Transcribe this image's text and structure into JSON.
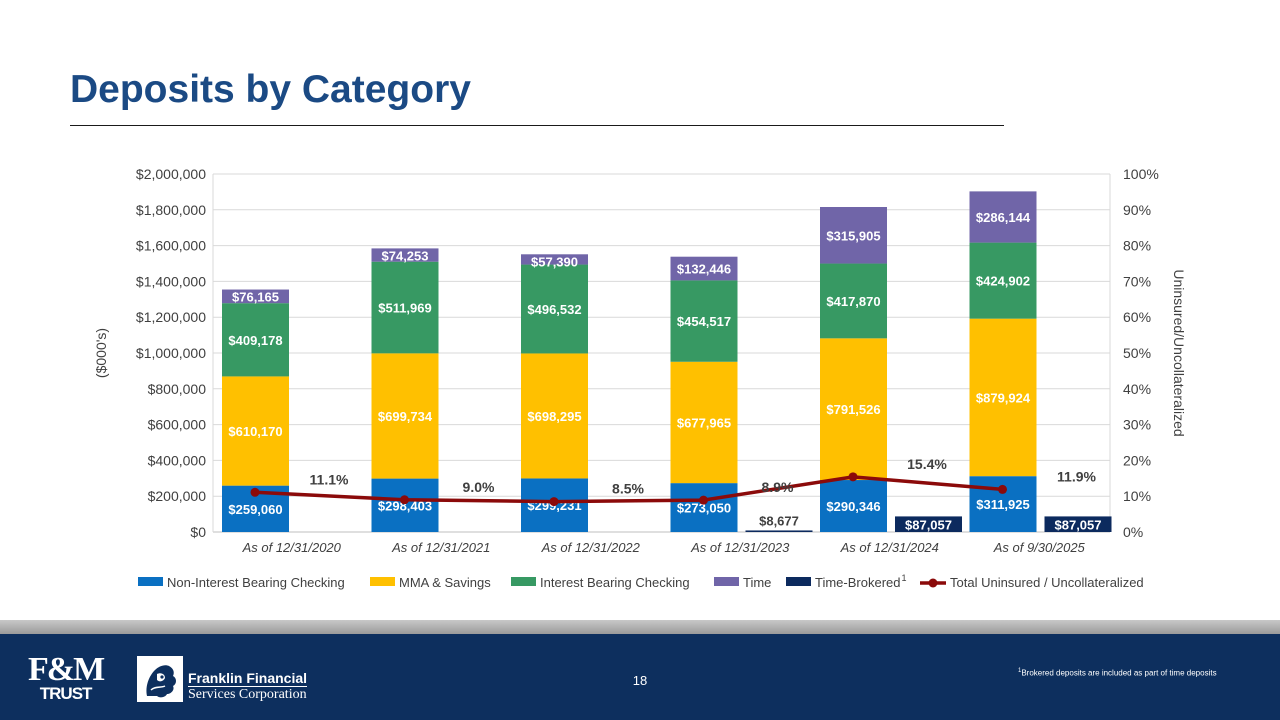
{
  "slide": {
    "title": "Deposits by Category",
    "page_number": "18",
    "footnote_marker": "1",
    "footnote_text": "Brokered deposits are included as part of time deposits"
  },
  "logos": {
    "fm_top": "F&M",
    "fm_bottom": "TRUST",
    "ffsc_line1": "Franklin Financial",
    "ffsc_line2": "Services Corporation"
  },
  "colors": {
    "title": "#1b4a84",
    "footer": "#0d2f5e",
    "non_interest": "#0a70c2",
    "mma": "#ffc000",
    "interest_bearing": "#379963",
    "time": "#7065a8",
    "time_brokered": "#0c2a5e",
    "uninsured_line": "#8b0a0a"
  },
  "chart_data": {
    "type": "bar",
    "stacked": true,
    "categories": [
      "As of 12/31/2020",
      "As of 12/31/2021",
      "As of 12/31/2022",
      "As of 12/31/2023",
      "As of 12/31/2024",
      "As of 9/30/2025"
    ],
    "ylabel": "($000's)",
    "y2label": "Uninsured/Uncollateralized",
    "ylim": [
      0,
      2000000
    ],
    "y2lim": [
      0,
      100
    ],
    "yticks": [
      "$0",
      "$200,000",
      "$400,000",
      "$600,000",
      "$800,000",
      "$1,000,000",
      "$1,200,000",
      "$1,400,000",
      "$1,600,000",
      "$1,800,000",
      "$2,000,000"
    ],
    "y2ticks": [
      "0%",
      "10%",
      "20%",
      "30%",
      "40%",
      "50%",
      "60%",
      "70%",
      "80%",
      "90%",
      "100%"
    ],
    "grid": true,
    "legend_position": "bottom",
    "series": [
      {
        "name": "Non-Interest Bearing Checking",
        "color": "#0a70c2",
        "values": [
          259060,
          298403,
          299231,
          273050,
          290346,
          311925
        ],
        "labels": [
          "$259,060",
          "$298,403",
          "$299,231",
          "$273,050",
          "$290,346",
          "$311,925"
        ]
      },
      {
        "name": "MMA & Savings",
        "color": "#ffc000",
        "values": [
          610170,
          699734,
          698295,
          677965,
          791526,
          879924
        ],
        "labels": [
          "$610,170",
          "$699,734",
          "$698,295",
          "$677,965",
          "$791,526",
          "$879,924"
        ]
      },
      {
        "name": "Interest Bearing Checking",
        "color": "#379963",
        "values": [
          409178,
          511969,
          496532,
          454517,
          417870,
          424902
        ],
        "labels": [
          "$409,178",
          "$511,969",
          "$496,532",
          "$454,517",
          "$417,870",
          "$424,902"
        ]
      },
      {
        "name": "Time",
        "color": "#7065a8",
        "values": [
          76165,
          74253,
          57390,
          132446,
          315905,
          286144
        ],
        "labels": [
          "$76,165",
          "$74,253",
          "$57,390",
          "$132,446",
          "$315,905",
          "$286,144"
        ]
      }
    ],
    "brokered_series": {
      "name": "Time-Brokered",
      "legend_superscript": "1",
      "color": "#0c2a5e",
      "values": [
        null,
        null,
        null,
        8677,
        87057,
        87057
      ],
      "labels": [
        "",
        "",
        "",
        "$8,677",
        "$87,057",
        "$87,057"
      ]
    },
    "line_series": {
      "name": "Total Uninsured / Uncollateralized",
      "color": "#8b0a0a",
      "axis": "secondary",
      "values": [
        11.1,
        9.0,
        8.5,
        8.9,
        15.4,
        11.9
      ],
      "labels": [
        "11.1%",
        "9.0%",
        "8.5%",
        "8.9%",
        "15.4%",
        "11.9%"
      ]
    }
  }
}
